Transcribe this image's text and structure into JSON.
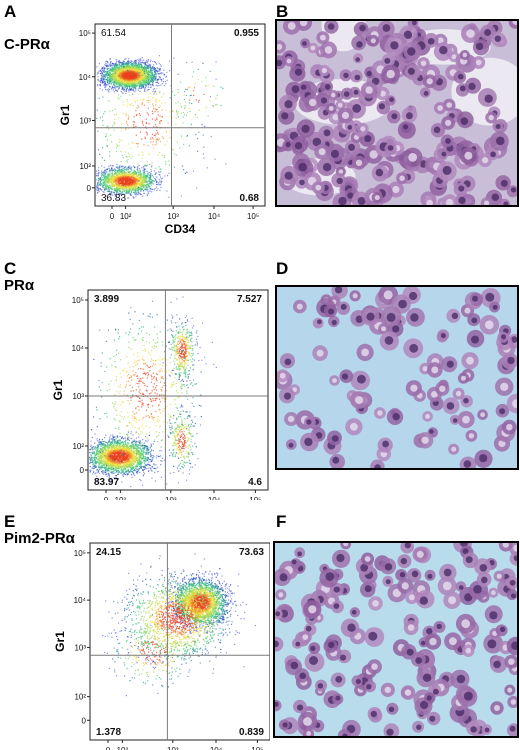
{
  "panels": {
    "A": {
      "letter": "A",
      "condition": "C-PRα",
      "quadrants": {
        "upper_left": "61.54",
        "upper_right": "0.955",
        "lower_left": "36.83",
        "lower_right": "0.68"
      }
    },
    "B": {
      "letter": "B"
    },
    "C": {
      "letter": "C",
      "condition": "PRα",
      "quadrants": {
        "upper_left": "3.899",
        "upper_right": "7.527",
        "lower_left": "83.97",
        "lower_right": "4.6"
      }
    },
    "D": {
      "letter": "D"
    },
    "E": {
      "letter": "E",
      "condition": "Pim2-PRα",
      "quadrants": {
        "upper_left": "24.15",
        "upper_right": "73.63",
        "lower_left": "1.378",
        "lower_right": "0.839"
      }
    },
    "F": {
      "letter": "F"
    }
  },
  "axes": {
    "x_label": "CD34",
    "y_label": "Gr1"
  },
  "x_ticks": [
    "0",
    "10²",
    "10³",
    "10⁴",
    "10⁵"
  ],
  "y_ticks": [
    "0",
    "10²",
    "10³",
    "10⁴",
    "10⁵"
  ],
  "colors": {
    "density_low": "#2b3bd6",
    "density_mid": "#39c97a",
    "density_high": "#f4e23a",
    "density_peak": "#e8401c",
    "gate": "#7a7a7a",
    "micro_bg_B": "#c9bed8",
    "micro_bg_D": "#b6d6ec",
    "micro_bg_F": "#b9dcec",
    "cell": "#8e5e9e",
    "nucleus": "#4b2c66"
  }
}
